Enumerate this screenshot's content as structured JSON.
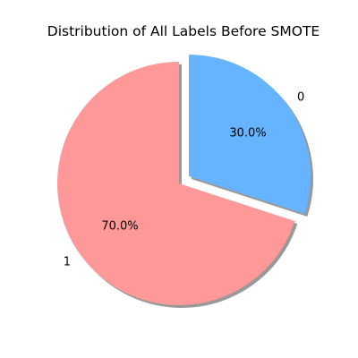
{
  "chart_data": {
    "type": "pie",
    "title": "Distribution of All Labels Before SMOTE",
    "start_angle_deg": 90,
    "direction": "counterclockwise",
    "shadow": true,
    "slices": [
      {
        "label": "1",
        "value": 70.0,
        "percent_label": "70.0%",
        "color": "#ff9999",
        "explode": 0
      },
      {
        "label": "0",
        "value": 30.0,
        "percent_label": "30.0%",
        "color": "#66b3ff",
        "explode": 0.1
      }
    ]
  }
}
